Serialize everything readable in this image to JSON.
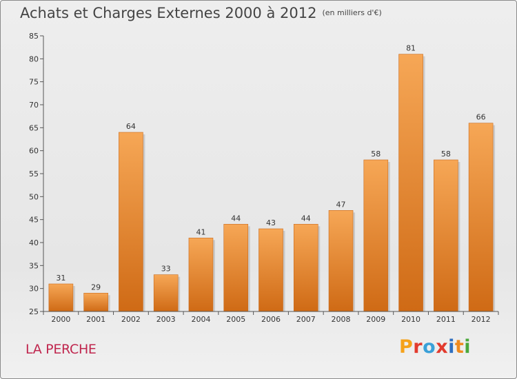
{
  "header": {
    "title": "Achats et Charges Externes 2000 à 2012",
    "subtitle": "(en milliers d'€)"
  },
  "footer": {
    "place": "LA PERCHE",
    "brand": "Proxiti",
    "brand_colors": [
      "#f5a21b",
      "#e23b2e",
      "#3aa0d8",
      "#e23b2e",
      "#2f6fc0",
      "#ef8a1e",
      "#4aa83c"
    ]
  },
  "chart_data": {
    "type": "bar",
    "title": "Achats et Charges Externes 2000 à 2012",
    "subtitle": "(en milliers d'€)",
    "categories": [
      "2000",
      "2001",
      "2002",
      "2003",
      "2004",
      "2005",
      "2006",
      "2007",
      "2008",
      "2009",
      "2010",
      "2011",
      "2012"
    ],
    "values": [
      31,
      29,
      64,
      33,
      41,
      44,
      43,
      44,
      47,
      58,
      81,
      58,
      66
    ],
    "ylim": [
      25,
      85
    ],
    "yticks": [
      25,
      30,
      35,
      40,
      45,
      50,
      55,
      60,
      65,
      70,
      75,
      80,
      85
    ],
    "grid": false,
    "bar_color_top": "#f6a756",
    "bar_color_bottom": "#cf6a15"
  }
}
